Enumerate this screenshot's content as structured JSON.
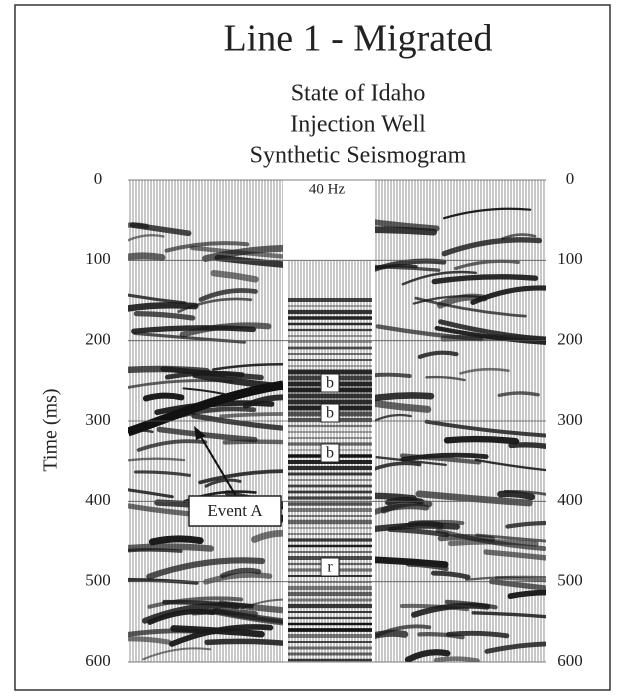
{
  "figure": {
    "title": "Line 1 - Migrated",
    "subtitle": [
      "State of Idaho",
      "Injection Well",
      "Synthetic Seismogram"
    ],
    "y_axis_label": "Time (ms)",
    "ylim": [
      0,
      600
    ],
    "yticks": [
      0,
      100,
      200,
      300,
      400,
      500,
      600
    ],
    "synthetic_label": "40 Hz",
    "annotations": [
      "b",
      "b",
      "b",
      "r"
    ],
    "event_label": "Event A"
  }
}
